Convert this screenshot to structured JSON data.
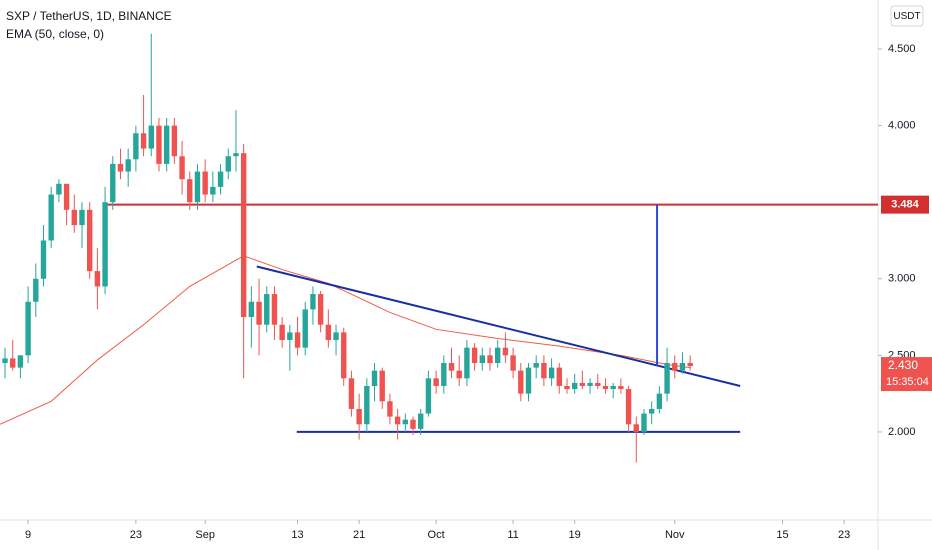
{
  "chart_data": {
    "type": "candlestick",
    "title": "SXP / TetherUS, 1D, BINANCE",
    "currency": "USDT",
    "up_color": "#26a69a",
    "down_color": "#ef5350",
    "ohlc": [
      [
        2.45,
        2.55,
        2.35,
        2.48
      ],
      [
        2.48,
        2.6,
        2.4,
        2.42
      ],
      [
        2.42,
        2.5,
        2.35,
        2.5
      ],
      [
        2.5,
        2.95,
        2.45,
        2.85
      ],
      [
        2.85,
        3.1,
        2.75,
        3.0
      ],
      [
        3.0,
        3.35,
        2.95,
        3.25
      ],
      [
        3.25,
        3.6,
        3.2,
        3.55
      ],
      [
        3.55,
        3.65,
        3.5,
        3.62
      ],
      [
        3.62,
        3.62,
        3.35,
        3.45
      ],
      [
        3.45,
        3.55,
        3.3,
        3.35
      ],
      [
        3.35,
        3.5,
        3.2,
        3.45
      ],
      [
        3.45,
        3.5,
        3.0,
        3.05
      ],
      [
        3.05,
        3.2,
        2.8,
        2.95
      ],
      [
        2.95,
        3.6,
        2.9,
        3.5
      ],
      [
        3.5,
        3.8,
        3.45,
        3.75
      ],
      [
        3.75,
        3.85,
        3.65,
        3.7
      ],
      [
        3.7,
        3.85,
        3.6,
        3.78
      ],
      [
        3.78,
        4.0,
        3.7,
        3.95
      ],
      [
        3.95,
        4.2,
        3.8,
        3.85
      ],
      [
        3.85,
        4.6,
        3.8,
        4.0
      ],
      [
        4.0,
        4.05,
        3.7,
        3.75
      ],
      [
        3.75,
        4.05,
        3.7,
        4.0
      ],
      [
        4.0,
        4.05,
        3.75,
        3.8
      ],
      [
        3.8,
        3.9,
        3.55,
        3.65
      ],
      [
        3.65,
        3.7,
        3.45,
        3.5
      ],
      [
        3.5,
        3.75,
        3.45,
        3.7
      ],
      [
        3.7,
        3.78,
        3.5,
        3.55
      ],
      [
        3.55,
        3.7,
        3.5,
        3.6
      ],
      [
        3.6,
        3.75,
        3.55,
        3.7
      ],
      [
        3.7,
        3.85,
        3.65,
        3.8
      ],
      [
        3.8,
        4.1,
        3.7,
        3.82
      ],
      [
        3.82,
        3.88,
        2.35,
        2.75
      ],
      [
        2.75,
        2.95,
        2.55,
        2.85
      ],
      [
        2.85,
        3.0,
        2.5,
        2.7
      ],
      [
        2.7,
        2.95,
        2.65,
        2.9
      ],
      [
        2.9,
        2.95,
        2.6,
        2.7
      ],
      [
        2.7,
        2.75,
        2.55,
        2.6
      ],
      [
        2.6,
        2.7,
        2.4,
        2.65
      ],
      [
        2.65,
        2.75,
        2.5,
        2.55
      ],
      [
        2.55,
        2.85,
        2.5,
        2.8
      ],
      [
        2.8,
        2.95,
        2.7,
        2.9
      ],
      [
        2.9,
        2.92,
        2.65,
        2.7
      ],
      [
        2.7,
        2.8,
        2.55,
        2.6
      ],
      [
        2.6,
        2.7,
        2.5,
        2.65
      ],
      [
        2.65,
        2.68,
        2.3,
        2.35
      ],
      [
        2.35,
        2.4,
        2.1,
        2.15
      ],
      [
        2.15,
        2.25,
        1.95,
        2.05
      ],
      [
        2.05,
        2.35,
        2.0,
        2.3
      ],
      [
        2.3,
        2.45,
        2.2,
        2.4
      ],
      [
        2.4,
        2.42,
        2.15,
        2.2
      ],
      [
        2.2,
        2.25,
        2.05,
        2.1
      ],
      [
        2.1,
        2.15,
        1.95,
        2.05
      ],
      [
        2.05,
        2.12,
        2.0,
        2.08
      ],
      [
        2.08,
        2.1,
        1.98,
        2.02
      ],
      [
        2.02,
        2.15,
        1.98,
        2.12
      ],
      [
        2.12,
        2.4,
        2.1,
        2.35
      ],
      [
        2.35,
        2.4,
        2.25,
        2.3
      ],
      [
        2.3,
        2.5,
        2.25,
        2.45
      ],
      [
        2.45,
        2.55,
        2.35,
        2.4
      ],
      [
        2.4,
        2.5,
        2.3,
        2.35
      ],
      [
        2.35,
        2.6,
        2.3,
        2.55
      ],
      [
        2.55,
        2.58,
        2.4,
        2.45
      ],
      [
        2.45,
        2.55,
        2.4,
        2.5
      ],
      [
        2.5,
        2.55,
        2.4,
        2.45
      ],
      [
        2.45,
        2.6,
        2.42,
        2.55
      ],
      [
        2.55,
        2.65,
        2.45,
        2.5
      ],
      [
        2.5,
        2.55,
        2.35,
        2.4
      ],
      [
        2.4,
        2.45,
        2.2,
        2.25
      ],
      [
        2.25,
        2.45,
        2.2,
        2.42
      ],
      [
        2.42,
        2.5,
        2.35,
        2.45
      ],
      [
        2.45,
        2.5,
        2.3,
        2.35
      ],
      [
        2.35,
        2.48,
        2.3,
        2.42
      ],
      [
        2.42,
        2.45,
        2.25,
        2.3
      ],
      [
        2.3,
        2.35,
        2.25,
        2.28
      ],
      [
        2.28,
        2.38,
        2.25,
        2.32
      ],
      [
        2.32,
        2.4,
        2.28,
        2.3
      ],
      [
        2.3,
        2.35,
        2.25,
        2.32
      ],
      [
        2.32,
        2.38,
        2.28,
        2.3
      ],
      [
        2.3,
        2.35,
        2.25,
        2.28
      ],
      [
        2.28,
        2.32,
        2.22,
        2.3
      ],
      [
        2.3,
        2.35,
        2.25,
        2.28
      ],
      [
        2.28,
        2.3,
        2.0,
        2.05
      ],
      [
        2.05,
        2.1,
        1.8,
        2.0
      ],
      [
        2.0,
        2.15,
        1.98,
        2.12
      ],
      [
        2.12,
        2.2,
        2.05,
        2.15
      ],
      [
        2.15,
        2.3,
        2.12,
        2.25
      ],
      [
        2.25,
        2.55,
        2.2,
        2.45
      ],
      [
        2.45,
        2.5,
        2.35,
        2.4
      ],
      [
        2.4,
        2.52,
        2.38,
        2.45
      ],
      [
        2.45,
        2.5,
        2.4,
        2.43
      ]
    ],
    "ema": {
      "name": "EMA (50, close, 0)",
      "color": "#f05a4a",
      "x": [
        -0.65,
        6,
        12,
        18,
        24,
        31,
        36,
        42,
        50,
        56,
        64,
        72,
        80,
        86,
        89
      ],
      "values": [
        2.05,
        2.2,
        2.47,
        2.7,
        2.95,
        3.15,
        3.06,
        2.97,
        2.78,
        2.67,
        2.61,
        2.56,
        2.5,
        2.44,
        2.42
      ]
    },
    "level": {
      "value": 3.484,
      "label": "3.484",
      "x0": 13,
      "color": "#d32f2f"
    },
    "trendlines": [
      {
        "points": [
          [
            32.7,
            3.08
          ],
          [
            95.5,
            2.3
          ]
        ],
        "color": "#1a2fa0"
      },
      {
        "points": [
          [
            37.9,
            2.0
          ],
          [
            95.5,
            2.0
          ]
        ],
        "color": "#1a2fa0"
      },
      {
        "points": [
          [
            84.7,
            2.43
          ],
          [
            84.7,
            3.484
          ]
        ],
        "color": "#2f48d8"
      }
    ],
    "last_price": {
      "value": 2.43,
      "label": "2.430",
      "countdown": "15:35:04"
    },
    "xlim": [
      -0.65,
      113.4
    ],
    "ylim": [
      1.425,
      4.82
    ],
    "xticks": [
      {
        "value": 3,
        "label": "9"
      },
      {
        "value": 17,
        "label": "23"
      },
      {
        "value": 26,
        "label": "Sep"
      },
      {
        "value": 38,
        "label": "13"
      },
      {
        "value": 46,
        "label": "21"
      },
      {
        "value": 56,
        "label": "Oct"
      },
      {
        "value": 66,
        "label": "11"
      },
      {
        "value": 74,
        "label": "19"
      },
      {
        "value": 87,
        "label": "Nov"
      },
      {
        "value": 101,
        "label": "15"
      },
      {
        "value": 109,
        "label": "23"
      }
    ],
    "yticks": [
      {
        "value": 2,
        "label": "2.000"
      },
      {
        "value": 2.5,
        "label": "2.500"
      },
      {
        "value": 3,
        "label": "3.000"
      },
      {
        "value": 4,
        "label": "4.000"
      },
      {
        "value": 4.5,
        "label": "4.500"
      }
    ]
  }
}
